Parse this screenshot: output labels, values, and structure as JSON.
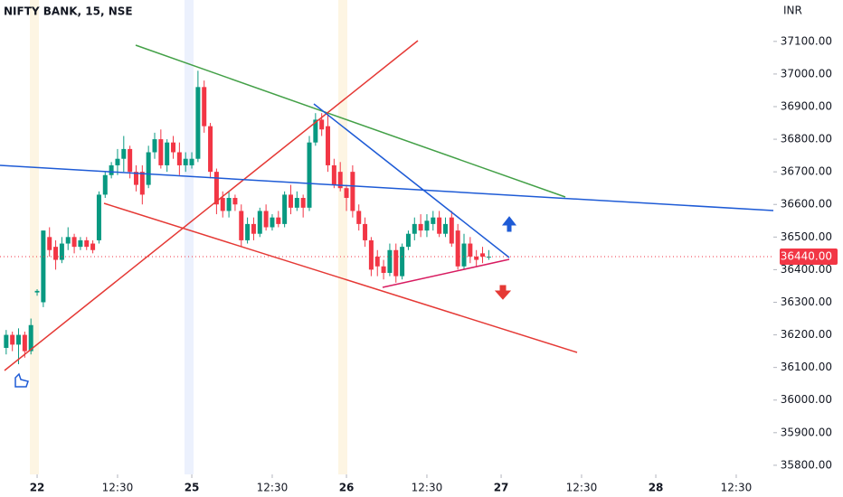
{
  "chart_data": {
    "type": "candlestick",
    "title": "NIFTY BANK, 15, NSE",
    "y_axis_label": "INR",
    "up_color": "#089981",
    "down_color": "#f23645",
    "xlim": [
      -6,
      119
    ],
    "xticks": [
      {
        "value": 0,
        "label": "22"
      },
      {
        "value": 13,
        "label": "12:30"
      },
      {
        "value": 25,
        "label": "25"
      },
      {
        "value": 38,
        "label": "12:30"
      },
      {
        "value": 50,
        "label": "26"
      },
      {
        "value": 63,
        "label": "12:30"
      },
      {
        "value": 75,
        "label": "27"
      },
      {
        "value": 88,
        "label": "12:30"
      },
      {
        "value": 100,
        "label": "28"
      },
      {
        "value": 113,
        "label": "12:30"
      }
    ],
    "ylim": [
      35772,
      37227
    ],
    "yticks": [
      {
        "value": 35800,
        "label": "35800.00"
      },
      {
        "value": 35900,
        "label": "35900.00"
      },
      {
        "value": 36000,
        "label": "36000.00"
      },
      {
        "value": 36100,
        "label": "36100.00"
      },
      {
        "value": 36200,
        "label": "36200.00"
      },
      {
        "value": 36300,
        "label": "36300.00"
      },
      {
        "value": 36400,
        "label": "36400.00"
      },
      {
        "value": 36500,
        "label": "36500.00"
      },
      {
        "value": 36600,
        "label": "36600.00"
      },
      {
        "value": 36700,
        "label": "36700.00"
      },
      {
        "value": 36800,
        "label": "36800.00"
      },
      {
        "value": 36900,
        "label": "36900.00"
      },
      {
        "value": 37000,
        "label": "37000.00"
      },
      {
        "value": 37100,
        "label": "37100.00"
      }
    ],
    "last_price": 36440,
    "last_price_label": "36440.00",
    "x": [
      -5,
      -4,
      -3,
      -2,
      -1,
      0,
      1,
      2,
      3,
      4,
      5,
      6,
      7,
      8,
      9,
      10,
      11,
      12,
      13,
      14,
      15,
      16,
      17,
      18,
      19,
      20,
      21,
      22,
      23,
      24,
      25,
      26,
      27,
      28,
      29,
      30,
      31,
      32,
      33,
      34,
      35,
      36,
      37,
      38,
      39,
      40,
      41,
      42,
      43,
      44,
      45,
      46,
      47,
      48,
      49,
      50,
      51,
      52,
      53,
      54,
      55,
      56,
      57,
      58,
      59,
      60,
      61,
      62,
      63,
      64,
      65,
      66,
      67,
      68,
      69,
      70,
      71,
      72,
      73
    ],
    "open": [
      36160,
      36200,
      36170,
      36200,
      36150,
      36330,
      36300,
      36500,
      36470,
      36430,
      36480,
      36500,
      36470,
      36490,
      36480,
      36490,
      36630,
      36690,
      36720,
      36740,
      36770,
      36700,
      36700,
      36660,
      36760,
      36800,
      36720,
      36790,
      36760,
      36720,
      36720,
      36740,
      36960,
      36840,
      36700,
      36620,
      36580,
      36620,
      36580,
      36490,
      36540,
      36510,
      36580,
      36530,
      36560,
      36540,
      36630,
      36590,
      36620,
      36590,
      36790,
      36860,
      36840,
      36720,
      36700,
      36650,
      36700,
      36580,
      36540,
      36490,
      36440,
      36410,
      36390,
      36460,
      36380,
      36470,
      36510,
      36540,
      36520,
      36540,
      36560,
      36510,
      36560,
      36520,
      36410,
      36480,
      36440,
      36450,
      36440
    ],
    "high": [
      36215,
      36210,
      36220,
      36210,
      36250,
      36340,
      36520,
      36530,
      36490,
      36500,
      36530,
      36510,
      36500,
      36500,
      36490,
      36640,
      36700,
      36730,
      36770,
      36810,
      36780,
      36720,
      36720,
      36780,
      36820,
      36830,
      36800,
      36810,
      36790,
      36760,
      36760,
      37010,
      36980,
      36850,
      36710,
      36640,
      36640,
      36630,
      36600,
      36560,
      36560,
      36590,
      36600,
      36570,
      36580,
      36640,
      36660,
      36640,
      36630,
      36810,
      36880,
      36880,
      36880,
      36740,
      36730,
      36660,
      36720,
      36600,
      36560,
      36500,
      36460,
      36430,
      36480,
      36480,
      36480,
      36520,
      36560,
      36570,
      36570,
      36580,
      36580,
      36560,
      36580,
      36540,
      36510,
      36500,
      36460,
      36470,
      36460
    ],
    "low": [
      36140,
      36150,
      36110,
      36130,
      36140,
      36320,
      36285,
      36440,
      36400,
      36420,
      36460,
      36450,
      36460,
      36460,
      36450,
      36480,
      36620,
      36680,
      36690,
      36700,
      36680,
      36640,
      36600,
      36650,
      36740,
      36710,
      36700,
      36740,
      36690,
      36700,
      36710,
      36730,
      36820,
      36680,
      36570,
      36560,
      36560,
      36580,
      36470,
      36480,
      36490,
      36500,
      36520,
      36520,
      36530,
      36530,
      36570,
      36580,
      36560,
      36580,
      36780,
      36810,
      36700,
      36650,
      36640,
      36580,
      36560,
      36520,
      36470,
      36380,
      36380,
      36370,
      36380,
      36360,
      36370,
      36460,
      36490,
      36500,
      36500,
      36520,
      36500,
      36500,
      36470,
      36400,
      36400,
      36420,
      36410,
      36420,
      36430
    ],
    "close": [
      36200,
      36170,
      36200,
      36150,
      36230,
      36335,
      36520,
      36460,
      36430,
      36480,
      36500,
      36470,
      36490,
      36470,
      36460,
      36630,
      36690,
      36720,
      36740,
      36770,
      36700,
      36660,
      36630,
      36760,
      36800,
      36720,
      36790,
      36760,
      36720,
      36740,
      36740,
      36960,
      36840,
      36700,
      36600,
      36580,
      36620,
      36600,
      36490,
      36540,
      36510,
      36580,
      36530,
      36560,
      36540,
      36630,
      36590,
      36620,
      36590,
      36790,
      36860,
      36830,
      36720,
      36660,
      36650,
      36620,
      36580,
      36540,
      36490,
      36400,
      36410,
      36390,
      36460,
      36380,
      36470,
      36510,
      36540,
      36520,
      36550,
      36560,
      36510,
      36540,
      36480,
      36410,
      36480,
      36440,
      36430,
      36440,
      36440
    ]
  }
}
